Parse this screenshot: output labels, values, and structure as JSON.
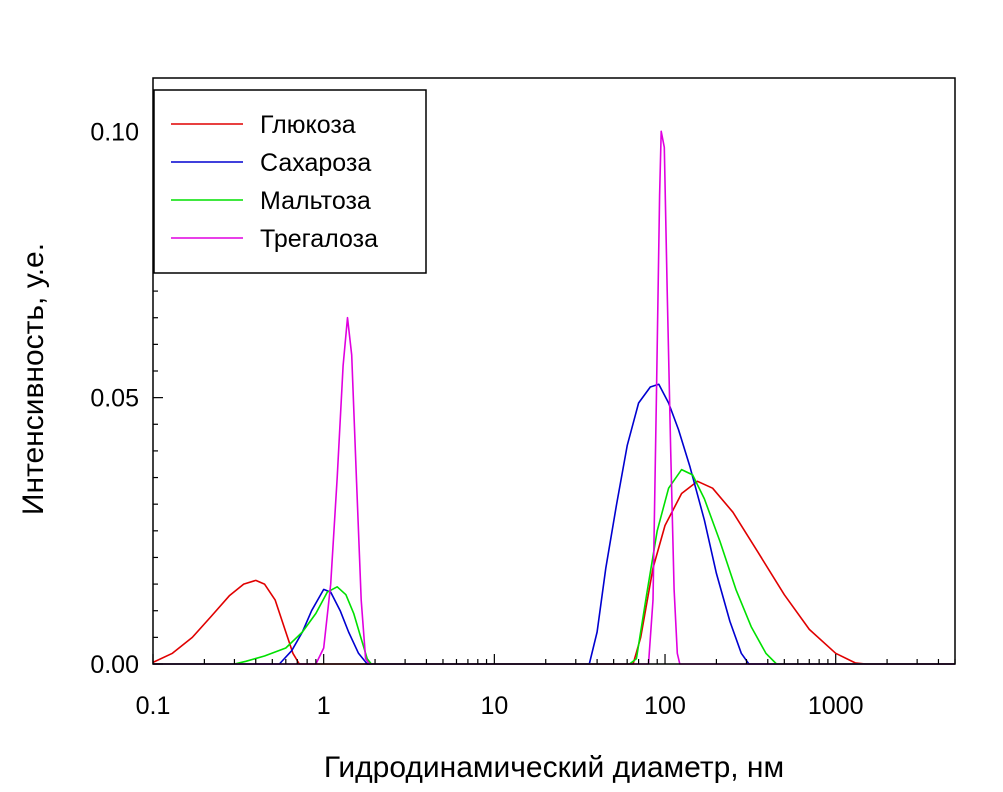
{
  "chart_data": {
    "type": "line",
    "title": "",
    "xlabel": "Гидродинамический диаметр, нм",
    "ylabel": "Интенсивность, у.е.",
    "xscale": "log",
    "xlim": [
      0.1,
      5000
    ],
    "ylim": [
      0,
      0.11
    ],
    "x_ticks": [
      0.1,
      1,
      10,
      100,
      1000
    ],
    "x_tick_labels": [
      "0.1",
      "1",
      "10",
      "100",
      "1000"
    ],
    "y_ticks": [
      0,
      0.05,
      0.1
    ],
    "y_tick_labels": [
      "0.00",
      "0.05",
      "0.10"
    ],
    "grid": false,
    "legend_position": "top-left",
    "series": [
      {
        "name": "Глюкоза",
        "color": "#e00000",
        "points": [
          [
            0.1,
            0.0003
          ],
          [
            0.13,
            0.002
          ],
          [
            0.17,
            0.005
          ],
          [
            0.22,
            0.009
          ],
          [
            0.28,
            0.0128
          ],
          [
            0.34,
            0.015
          ],
          [
            0.4,
            0.0157
          ],
          [
            0.45,
            0.015
          ],
          [
            0.52,
            0.012
          ],
          [
            0.6,
            0.006
          ],
          [
            0.66,
            0.002
          ],
          [
            0.72,
            0.0
          ],
          [
            5,
            0.0
          ],
          [
            50,
            0.0
          ],
          [
            65,
            0.0
          ],
          [
            72,
            0.005
          ],
          [
            85,
            0.018
          ],
          [
            100,
            0.026
          ],
          [
            125,
            0.032
          ],
          [
            155,
            0.0343
          ],
          [
            190,
            0.033
          ],
          [
            250,
            0.0285
          ],
          [
            350,
            0.021
          ],
          [
            500,
            0.013
          ],
          [
            700,
            0.0065
          ],
          [
            1000,
            0.002
          ],
          [
            1300,
            0.0002
          ],
          [
            1500,
            0.0
          ],
          [
            5000,
            0.0
          ]
        ]
      },
      {
        "name": "Сахароза",
        "color": "#0000d0",
        "points": [
          [
            0.1,
            0.0
          ],
          [
            0.55,
            0.0
          ],
          [
            0.65,
            0.0025
          ],
          [
            0.75,
            0.006
          ],
          [
            0.85,
            0.01
          ],
          [
            1.0,
            0.014
          ],
          [
            1.1,
            0.0135
          ],
          [
            1.25,
            0.01
          ],
          [
            1.4,
            0.006
          ],
          [
            1.6,
            0.002
          ],
          [
            1.8,
            0.0
          ],
          [
            36,
            0.0
          ],
          [
            40,
            0.006
          ],
          [
            45,
            0.018
          ],
          [
            52,
            0.03
          ],
          [
            60,
            0.041
          ],
          [
            70,
            0.049
          ],
          [
            82,
            0.052
          ],
          [
            92,
            0.0525
          ],
          [
            105,
            0.049
          ],
          [
            120,
            0.044
          ],
          [
            140,
            0.037
          ],
          [
            170,
            0.027
          ],
          [
            200,
            0.017
          ],
          [
            240,
            0.008
          ],
          [
            280,
            0.002
          ],
          [
            310,
            0.0
          ],
          [
            5000,
            0.0
          ]
        ]
      },
      {
        "name": "Мальтоза",
        "color": "#00e000",
        "points": [
          [
            0.1,
            0.0
          ],
          [
            0.3,
            0.0
          ],
          [
            0.35,
            0.0005
          ],
          [
            0.45,
            0.0015
          ],
          [
            0.6,
            0.003
          ],
          [
            0.75,
            0.006
          ],
          [
            0.9,
            0.0095
          ],
          [
            1.05,
            0.0135
          ],
          [
            1.2,
            0.0145
          ],
          [
            1.35,
            0.013
          ],
          [
            1.5,
            0.0095
          ],
          [
            1.65,
            0.005
          ],
          [
            1.8,
            0.001
          ],
          [
            1.9,
            0.0
          ],
          [
            62,
            0.0
          ],
          [
            68,
            0.001
          ],
          [
            78,
            0.013
          ],
          [
            90,
            0.025
          ],
          [
            105,
            0.033
          ],
          [
            125,
            0.0365
          ],
          [
            145,
            0.0355
          ],
          [
            170,
            0.031
          ],
          [
            210,
            0.023
          ],
          [
            260,
            0.014
          ],
          [
            320,
            0.007
          ],
          [
            390,
            0.002
          ],
          [
            450,
            0.0
          ],
          [
            5000,
            0.0
          ]
        ]
      },
      {
        "name": "Трегалоза",
        "color": "#e000e0",
        "points": [
          [
            0.1,
            0.0
          ],
          [
            0.9,
            0.0
          ],
          [
            1.0,
            0.003
          ],
          [
            1.1,
            0.015
          ],
          [
            1.2,
            0.035
          ],
          [
            1.3,
            0.056
          ],
          [
            1.38,
            0.065
          ],
          [
            1.46,
            0.058
          ],
          [
            1.56,
            0.034
          ],
          [
            1.66,
            0.012
          ],
          [
            1.76,
            0.001
          ],
          [
            1.85,
            0.0
          ],
          [
            80,
            0.0
          ],
          [
            85,
            0.012
          ],
          [
            89,
            0.05
          ],
          [
            93,
            0.088
          ],
          [
            95,
            0.1
          ],
          [
            99,
            0.097
          ],
          [
            103,
            0.07
          ],
          [
            108,
            0.04
          ],
          [
            113,
            0.014
          ],
          [
            118,
            0.002
          ],
          [
            122,
            0.0
          ],
          [
            5000,
            0.0
          ]
        ]
      }
    ]
  }
}
